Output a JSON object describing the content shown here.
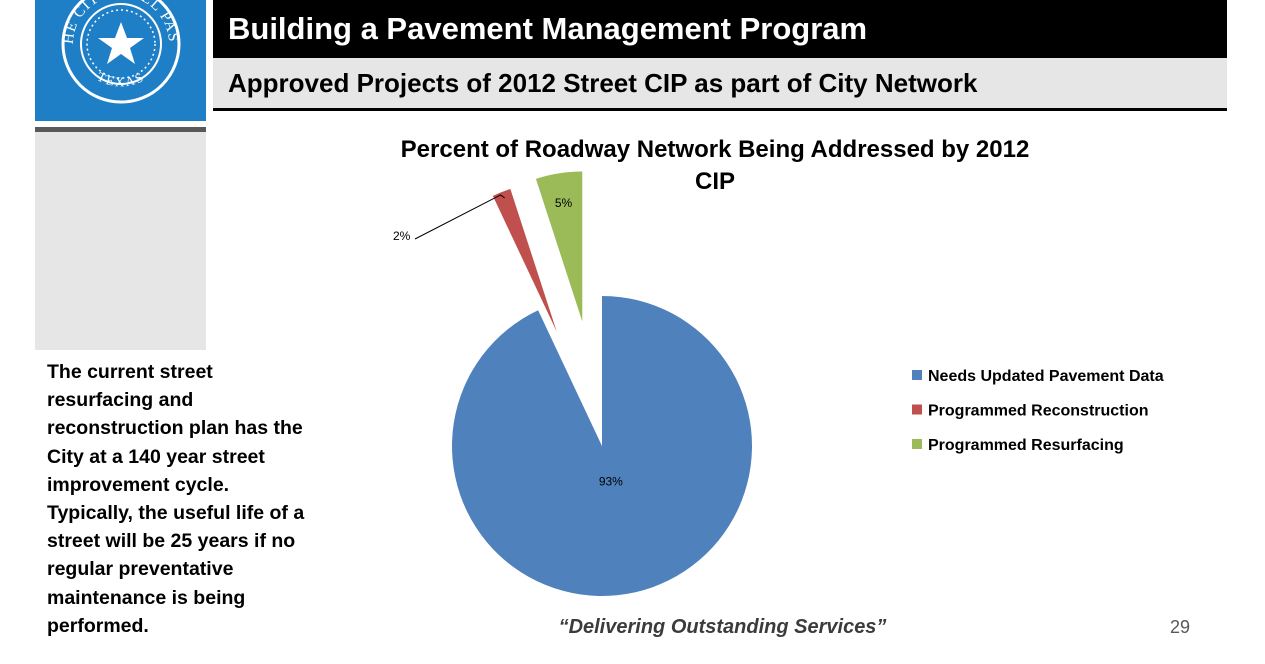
{
  "header": {
    "title": "Building a Pavement Management Program",
    "subtitle": "Approved Projects of 2012 Street CIP as part of City Network"
  },
  "seal": {
    "text_top": "THE CITY OF EL PASO",
    "text_bottom": "TEXAS"
  },
  "side_note": "The current street resurfacing and reconstruction plan has the City at a 140 year street improvement cycle. Typically, the useful life of a street will be 25 years if no regular preventative maintenance is being performed.",
  "footer": {
    "tagline": "“Delivering Outstanding Services”",
    "page_number": "29"
  },
  "chart_data": {
    "type": "pie",
    "title_line1": "Percent of Roadway Network Being Addressed by 2012",
    "title_line2": "CIP",
    "slices": [
      {
        "name": "Needs Updated Pavement Data",
        "value": 93,
        "label": "93%",
        "color": "#4f81bd"
      },
      {
        "name": "Programmed Reconstruction",
        "value": 2,
        "label": "2%",
        "color": "#c0504d"
      },
      {
        "name": "Programmed Resurfacing",
        "value": 5,
        "label": "5%",
        "color": "#9bbb59"
      }
    ],
    "legend_position": "right"
  }
}
